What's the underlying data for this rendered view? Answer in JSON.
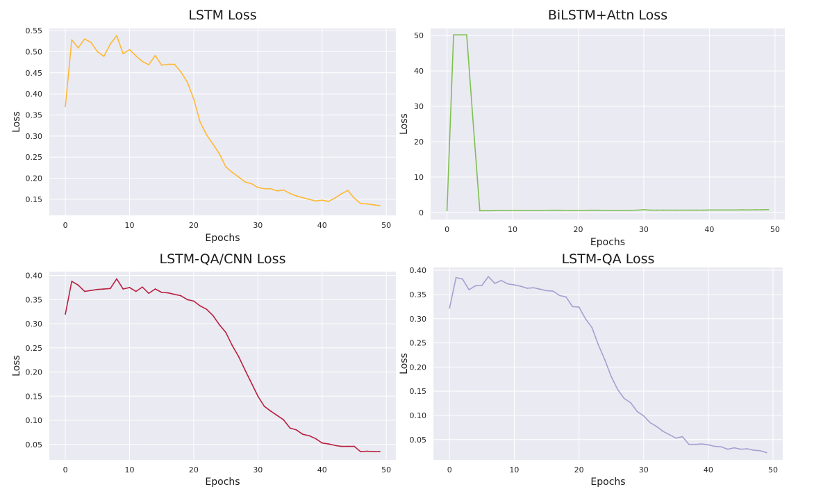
{
  "chart_data": [
    {
      "type": "line",
      "title": "LSTM Loss",
      "xlabel": "Epochs",
      "ylabel": "Loss",
      "xlim": [
        -2.5,
        51.5
      ],
      "ylim": [
        0.112,
        0.555
      ],
      "xticks": [
        0,
        10,
        20,
        30,
        40,
        50
      ],
      "yticks": [
        0.15,
        0.2,
        0.25,
        0.3,
        0.35,
        0.4,
        0.45,
        0.5,
        0.55
      ],
      "ytick_labels": [
        "0.15",
        "0.20",
        "0.25",
        "0.30",
        "0.35",
        "0.40",
        "0.45",
        "0.50",
        "0.55"
      ],
      "grid": true,
      "series": [
        {
          "color": "#ffb833",
          "x": [
            0,
            1,
            2,
            3,
            4,
            5,
            6,
            7,
            8,
            9,
            10,
            11,
            12,
            13,
            14,
            15,
            16,
            17,
            18,
            19,
            20,
            21,
            22,
            23,
            24,
            25,
            26,
            27,
            28,
            29,
            30,
            31,
            32,
            33,
            34,
            35,
            36,
            37,
            38,
            39,
            40,
            41,
            42,
            43,
            44,
            45,
            46,
            47,
            48,
            49
          ],
          "values": [
            0.37,
            0.528,
            0.509,
            0.53,
            0.522,
            0.5,
            0.489,
            0.518,
            0.538,
            0.495,
            0.505,
            0.49,
            0.477,
            0.469,
            0.491,
            0.468,
            0.47,
            0.47,
            0.452,
            0.428,
            0.388,
            0.333,
            0.303,
            0.281,
            0.258,
            0.227,
            0.214,
            0.203,
            0.191,
            0.187,
            0.178,
            0.175,
            0.175,
            0.17,
            0.172,
            0.164,
            0.158,
            0.154,
            0.15,
            0.146,
            0.148,
            0.145,
            0.153,
            0.163,
            0.171,
            0.153,
            0.14,
            0.139,
            0.137,
            0.135
          ]
        }
      ]
    },
    {
      "type": "line",
      "title": "BiLSTM+Attn Loss",
      "xlabel": "Epochs",
      "ylabel": "Loss",
      "xlim": [
        -2.5,
        51.5
      ],
      "ylim": [
        -2,
        52
      ],
      "xticks": [
        0,
        10,
        20,
        30,
        40,
        50
      ],
      "yticks": [
        0,
        10,
        20,
        30,
        40,
        50
      ],
      "ytick_labels": [
        "0",
        "10",
        "20",
        "30",
        "40",
        "50"
      ],
      "grid": true,
      "series": [
        {
          "color": "#7fbf50",
          "x": [
            0,
            1,
            2,
            3,
            4,
            5,
            6,
            7,
            8,
            9,
            10,
            11,
            12,
            13,
            14,
            15,
            16,
            17,
            18,
            19,
            20,
            21,
            22,
            23,
            24,
            25,
            26,
            27,
            28,
            29,
            30,
            31,
            32,
            33,
            34,
            35,
            36,
            37,
            38,
            39,
            40,
            41,
            42,
            43,
            44,
            45,
            46,
            47,
            48,
            49
          ],
          "values": [
            0.5,
            50.2,
            50.2,
            50.2,
            25.0,
            0.5,
            0.5,
            0.5,
            0.55,
            0.6,
            0.6,
            0.6,
            0.6,
            0.6,
            0.6,
            0.6,
            0.62,
            0.62,
            0.6,
            0.6,
            0.6,
            0.6,
            0.62,
            0.62,
            0.6,
            0.6,
            0.6,
            0.6,
            0.6,
            0.65,
            0.8,
            0.65,
            0.65,
            0.65,
            0.65,
            0.65,
            0.65,
            0.65,
            0.65,
            0.65,
            0.7,
            0.7,
            0.7,
            0.7,
            0.7,
            0.75,
            0.7,
            0.75,
            0.75,
            0.8
          ]
        }
      ]
    },
    {
      "type": "line",
      "title": "LSTM-QA/CNN Loss",
      "xlabel": "Epochs",
      "ylabel": "Loss",
      "xlim": [
        -2.5,
        51.5
      ],
      "ylim": [
        0.018,
        0.408
      ],
      "xticks": [
        0,
        10,
        20,
        30,
        40,
        50
      ],
      "yticks": [
        0.05,
        0.1,
        0.15,
        0.2,
        0.25,
        0.3,
        0.35,
        0.4
      ],
      "ytick_labels": [
        "0.05",
        "0.10",
        "0.15",
        "0.20",
        "0.25",
        "0.30",
        "0.35",
        "0.40"
      ],
      "grid": true,
      "series": [
        {
          "color": "#b8203e",
          "x": [
            0,
            1,
            2,
            3,
            4,
            5,
            6,
            7,
            8,
            9,
            10,
            11,
            12,
            13,
            14,
            15,
            16,
            17,
            18,
            19,
            20,
            21,
            22,
            23,
            24,
            25,
            26,
            27,
            28,
            29,
            30,
            31,
            32,
            33,
            34,
            35,
            36,
            37,
            38,
            39,
            40,
            41,
            42,
            43,
            44,
            45,
            46,
            47,
            48,
            49
          ],
          "values": [
            0.32,
            0.388,
            0.38,
            0.367,
            0.369,
            0.371,
            0.372,
            0.373,
            0.393,
            0.372,
            0.375,
            0.367,
            0.376,
            0.363,
            0.372,
            0.365,
            0.364,
            0.361,
            0.358,
            0.35,
            0.347,
            0.337,
            0.33,
            0.317,
            0.298,
            0.282,
            0.255,
            0.232,
            0.204,
            0.177,
            0.15,
            0.129,
            0.119,
            0.11,
            0.101,
            0.084,
            0.08,
            0.071,
            0.068,
            0.062,
            0.053,
            0.051,
            0.048,
            0.046,
            0.046,
            0.046,
            0.035,
            0.036,
            0.035,
            0.035
          ]
        }
      ]
    },
    {
      "type": "line",
      "title": "LSTM-QA Loss",
      "xlabel": "Epochs",
      "ylabel": "Loss",
      "xlim": [
        -2.5,
        51.5
      ],
      "ylim": [
        0.008,
        0.406
      ],
      "xticks": [
        0,
        10,
        20,
        30,
        40,
        50
      ],
      "yticks": [
        0.05,
        0.1,
        0.15,
        0.2,
        0.25,
        0.3,
        0.35,
        0.4
      ],
      "ytick_labels": [
        "0.05",
        "0.10",
        "0.15",
        "0.20",
        "0.25",
        "0.30",
        "0.35",
        "0.40"
      ],
      "grid": true,
      "series": [
        {
          "color": "#a79fd1",
          "x": [
            0,
            1,
            2,
            3,
            4,
            5,
            6,
            7,
            8,
            9,
            10,
            11,
            12,
            13,
            14,
            15,
            16,
            17,
            18,
            19,
            20,
            21,
            22,
            23,
            24,
            25,
            26,
            27,
            28,
            29,
            30,
            31,
            32,
            33,
            34,
            35,
            36,
            37,
            38,
            39,
            40,
            41,
            42,
            43,
            44,
            45,
            46,
            47,
            48,
            49
          ],
          "values": [
            0.322,
            0.385,
            0.382,
            0.36,
            0.368,
            0.369,
            0.387,
            0.373,
            0.379,
            0.372,
            0.37,
            0.367,
            0.363,
            0.364,
            0.361,
            0.358,
            0.357,
            0.348,
            0.345,
            0.325,
            0.324,
            0.3,
            0.282,
            0.246,
            0.215,
            0.18,
            0.153,
            0.135,
            0.126,
            0.108,
            0.099,
            0.085,
            0.077,
            0.067,
            0.06,
            0.053,
            0.056,
            0.04,
            0.04,
            0.041,
            0.039,
            0.036,
            0.035,
            0.03,
            0.033,
            0.03,
            0.031,
            0.028,
            0.027,
            0.023
          ]
        }
      ]
    }
  ]
}
